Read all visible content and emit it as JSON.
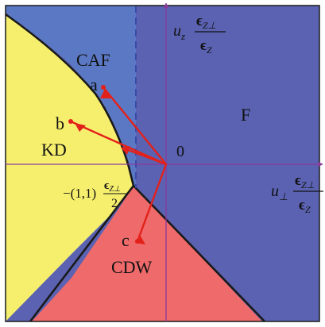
{
  "regions": {
    "caf": "CAF",
    "kd": "KD",
    "f": "F",
    "cdw": "CDW"
  },
  "points": {
    "a": "a",
    "b": "b",
    "c": "c",
    "origin": "0"
  },
  "axes": {
    "vertical": {
      "prefix": "u",
      "sub": "z",
      "num_main": "ϵ",
      "num_sub": "Z⊥",
      "den_main": "ϵ",
      "den_sub": "Z"
    },
    "horizontal": {
      "prefix": "u",
      "sub": "⊥",
      "num_main": "ϵ",
      "num_sub": "Z⊥",
      "den_main": "ϵ",
      "den_sub": "Z"
    }
  },
  "corner_label": {
    "prefix": "−(1,1)",
    "num_main": "ϵ",
    "num_sub": "Z⊥",
    "den": "2"
  },
  "colors": {
    "f_region": "#5b62b2",
    "caf_region": "#6cbf56",
    "kd_region": "#f6ef6e",
    "cdw_region": "#ef6a6a",
    "boundary": "#1a1a1a",
    "axis": "#8a3a9a",
    "arrow": "#e3211b",
    "dashed": "#3a4aa8"
  }
}
